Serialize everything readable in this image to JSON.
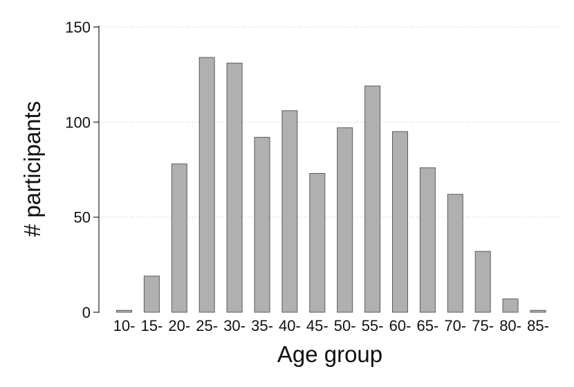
{
  "chart_data": {
    "type": "bar",
    "title": "",
    "xlabel": "Age group",
    "ylabel": "# participants",
    "categories": [
      "10-",
      "15-",
      "20-",
      "25-",
      "30-",
      "35-",
      "40-",
      "45-",
      "50-",
      "55-",
      "60-",
      "65-",
      "70-",
      "75-",
      "80-",
      "85-"
    ],
    "values": [
      1,
      19,
      78,
      134,
      131,
      92,
      106,
      73,
      97,
      119,
      95,
      76,
      62,
      32,
      7,
      1
    ],
    "ylim": [
      0,
      150
    ],
    "yticks": [
      0,
      50,
      100,
      150
    ],
    "grid": true,
    "legend": "none",
    "colors": {
      "bar_fill": "#b0b0b0",
      "bar_stroke": "#5a5a5a",
      "axis": "#222222",
      "grid": "#c8c8c8"
    }
  }
}
